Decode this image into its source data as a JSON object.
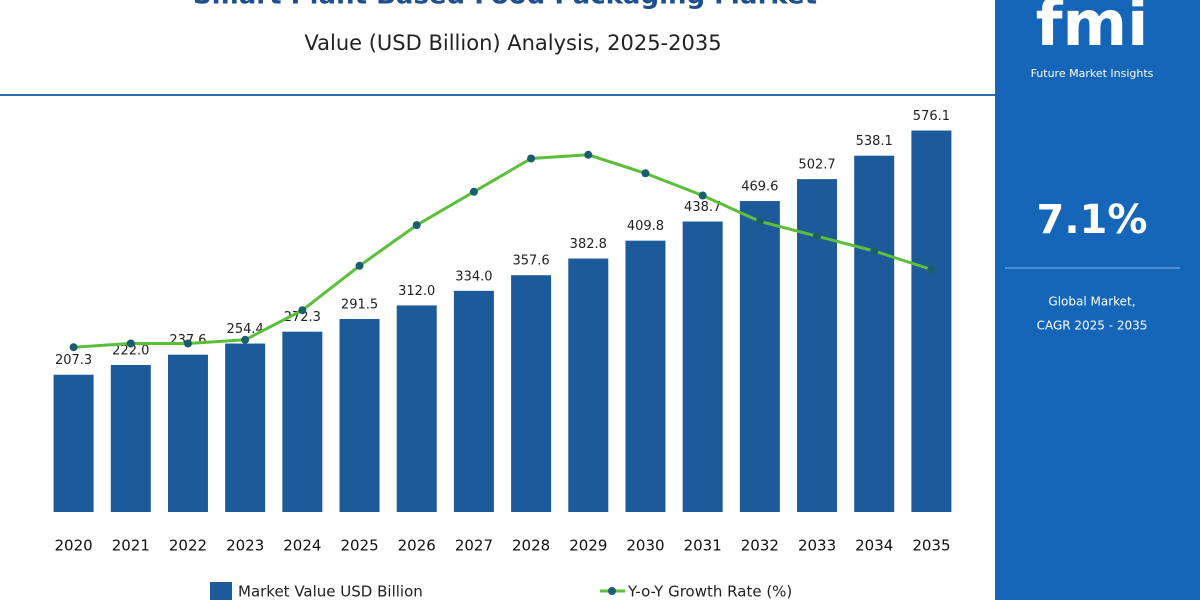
{
  "chart_data": {
    "type": "bar",
    "title": "Smart Plant Based Food Packaging Market",
    "subtitle": "Value (USD Billion) Analysis, 2025-2035",
    "categories": [
      "2020",
      "2021",
      "2022",
      "2023",
      "2024",
      "2025",
      "2026",
      "2027",
      "2028",
      "2029",
      "2030",
      "2031",
      "2032",
      "2033",
      "2034",
      "2035"
    ],
    "series": [
      {
        "name": "Market Value USD Billion",
        "color": "#1d5a9a",
        "values": [
          207.3,
          222.0,
          237.6,
          254.4,
          272.3,
          291.5,
          312.0,
          334.0,
          357.6,
          382.8,
          409.8,
          438.7,
          469.6,
          502.7,
          538.1,
          576.1
        ],
        "value_labels": [
          "207.3",
          "222.0",
          "237.6",
          "254.4",
          "272.3",
          "291.5",
          "312.0",
          "334.0",
          "357.6",
          "382.8",
          "409.8",
          "438.7",
          "469.6",
          "502.7",
          "538.1",
          "576.1"
        ]
      },
      {
        "name": "Y-o-Y Growth Rate (%)",
        "color": "#5cbf3a",
        "type": "line",
        "axis": "y2",
        "values": [
          6.94,
          6.95,
          6.95,
          6.96,
          7.04,
          7.16,
          7.27,
          7.36,
          7.45,
          7.46,
          7.41,
          7.35,
          7.28,
          7.24,
          7.2,
          7.15
        ]
      }
    ],
    "ylim": [
      0,
      663
    ],
    "y2lim": [
      6.5,
      7.5
    ],
    "legend": "bottom"
  },
  "sidebar": {
    "logo": "fmi",
    "brand": "Future Market Insights",
    "cagr": "7.1%",
    "caption_1": "Global Market,",
    "caption_2": "CAGR 2025 - 2035"
  }
}
